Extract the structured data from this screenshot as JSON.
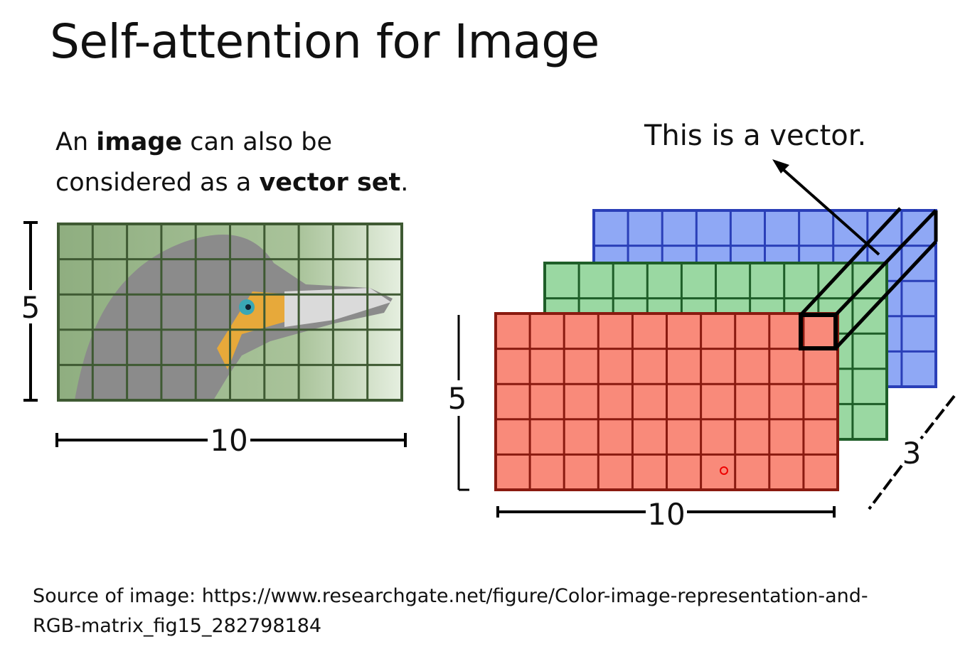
{
  "slide": {
    "title": "Self-attention for Image",
    "body": {
      "line1_pre": "An ",
      "line1_bold": "image",
      "line1_post": " can also be",
      "line2_pre": "considered as a ",
      "line2_bold": "vector set",
      "line2_post": "."
    },
    "vector_label": "This is a vector.",
    "source_line1": "Source of image: https://www.researchgate.net/figure/Color-image-representation-and-",
    "source_line2": "RGB-matrix_fig15_282798184"
  },
  "figure": {
    "left_height_label": "5",
    "left_width_label": "10",
    "right_height_label": "5",
    "right_width_label": "10",
    "right_depth_label": "3",
    "grid_cols": 10,
    "grid_rows": 5,
    "channels": [
      {
        "name": "blue",
        "fill": "#8fa8f5",
        "line": "#2a3fb8"
      },
      {
        "name": "green",
        "fill": "#9ad8a2",
        "line": "#1e5e28"
      },
      {
        "name": "red",
        "fill": "#f98a7a",
        "line": "#8a1a10"
      }
    ]
  }
}
